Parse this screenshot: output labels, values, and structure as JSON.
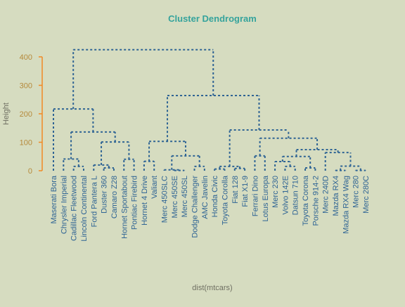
{
  "chart_data": {
    "type": "dendrogram",
    "title": "Cluster Dendrogram",
    "ylabel": "Height",
    "xlabel": "dist(mtcars)",
    "ylim": [
      0,
      425
    ],
    "yticks": [
      0,
      100,
      200,
      300,
      400
    ],
    "color": "#2f6494",
    "tree": {
      "height": 425,
      "children": [
        {
          "height": 217,
          "children": [
            {
              "label": "Maserati Bora"
            },
            {
              "height": 136,
              "children": [
                {
                  "height": 41,
                  "children": [
                    {
                      "label": "Chrysler Imperial"
                    },
                    {
                      "height": 15,
                      "children": [
                        {
                          "label": "Cadillac Fleetwood"
                        },
                        {
                          "label": "Lincoln Continental"
                        }
                      ]
                    }
                  ]
                },
                {
                  "height": 101,
                  "children": [
                    {
                      "height": 20,
                      "children": [
                        {
                          "label": "Ford Pantera L"
                        },
                        {
                          "height": 10,
                          "children": [
                            {
                              "label": "Duster 360"
                            },
                            {
                              "label": "Camaro Z28"
                            }
                          ]
                        }
                      ]
                    },
                    {
                      "height": 40,
                      "children": [
                        {
                          "label": "Hornet Sportabout"
                        },
                        {
                          "label": "Pontiac Firebird"
                        }
                      ]
                    }
                  ]
                }
              ]
            }
          ]
        },
        {
          "height": 264,
          "children": [
            {
              "height": 103,
              "children": [
                {
                  "height": 33,
                  "children": [
                    {
                      "label": "Hornet 4 Drive"
                    },
                    {
                      "label": "Valiant"
                    }
                  ]
                },
                {
                  "height": 52,
                  "children": [
                    {
                      "height": 3,
                      "children": [
                        {
                          "label": "Merc 450SLC"
                        },
                        {
                          "height": 1,
                          "children": [
                            {
                              "label": "Merc 450SE"
                            },
                            {
                              "label": "Merc 450SL"
                            }
                          ]
                        }
                      ]
                    },
                    {
                      "height": 15,
                      "children": [
                        {
                          "label": "Dodge Challenger"
                        },
                        {
                          "label": "AMC Javelin"
                        }
                      ]
                    }
                  ]
                }
              ]
            },
            {
              "height": 143,
              "children": [
                {
                  "height": 15,
                  "children": [
                    {
                      "height": 6,
                      "children": [
                        {
                          "label": "Honda Civic"
                        },
                        {
                          "label": "Toyota Corolla"
                        }
                      ]
                    },
                    {
                      "height": 8,
                      "children": [
                        {
                          "label": "Fiat 128"
                        },
                        {
                          "label": "Fiat X1-9"
                        }
                      ]
                    }
                  ]
                },
                {
                  "height": 114,
                  "children": [
                    {
                      "height": 52,
                      "children": [
                        {
                          "label": "Ferrari Dino"
                        },
                        {
                          "label": "Lotus Europa"
                        }
                      ]
                    },
                    {
                      "height": 74,
                      "children": [
                        {
                          "height": 50,
                          "children": [
                            {
                              "height": 32,
                              "children": [
                                {
                                  "label": "Merc 230"
                                },
                                {
                                  "height": 15,
                                  "children": [
                                    {
                                      "label": "Volvo 142E"
                                    },
                                    {
                                      "label": "Datsun 710"
                                    }
                                  ]
                                }
                              ]
                            },
                            {
                              "height": 10,
                              "children": [
                                {
                                  "label": "Toyota Corona"
                                },
                                {
                                  "label": "Porsche 914-2"
                                }
                              ]
                            }
                          ]
                        },
                        {
                          "height": 64,
                          "children": [
                            {
                              "label": "Merc 240D"
                            },
                            {
                              "height": 16,
                              "children": [
                                {
                                  "height": 1,
                                  "children": [
                                    {
                                      "label": "Mazda RX4"
                                    },
                                    {
                                      "label": "Mazda RX4 Wag"
                                    }
                                  ]
                                },
                                {
                                  "height": 1,
                                  "children": [
                                    {
                                      "label": "Merc 280"
                                    },
                                    {
                                      "label": "Merc 280C"
                                    }
                                  ]
                                }
                              ]
                            }
                          ]
                        }
                      ]
                    }
                  ]
                }
              ]
            }
          ]
        }
      ]
    }
  }
}
